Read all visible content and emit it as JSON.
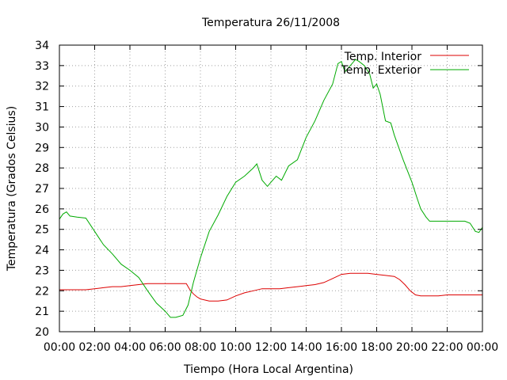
{
  "chart_data": {
    "type": "line",
    "title": "Temperatura 26/11/2008",
    "xlabel": "Tiempo (Hora Local Argentina)",
    "ylabel": "Temperatura (Grados Celsius)",
    "xlim": [
      0,
      24
    ],
    "ylim": [
      20,
      34
    ],
    "x_ticks": [
      "00:00",
      "02:00",
      "04:00",
      "06:00",
      "08:00",
      "10:00",
      "12:00",
      "14:00",
      "16:00",
      "18:00",
      "20:00",
      "22:00",
      "00:00"
    ],
    "y_ticks": [
      "20",
      "21",
      "22",
      "23",
      "24",
      "25",
      "26",
      "27",
      "28",
      "29",
      "30",
      "31",
      "32",
      "33",
      "34"
    ],
    "grid": true,
    "legend_position": "top-right",
    "colors": {
      "interior": "#dd0000",
      "exterior": "#00aa00",
      "grid": "#a0a0a0",
      "axis": "#000000"
    },
    "series": [
      {
        "name": "Temp. Interior",
        "x": [
          0,
          0.5,
          1,
          1.5,
          2,
          2.5,
          3,
          3.5,
          4,
          4.5,
          5,
          5.5,
          6,
          6.5,
          7,
          7.2,
          7.4,
          7.6,
          7.8,
          8,
          8.5,
          9,
          9.5,
          10,
          10.5,
          11,
          11.5,
          12,
          12.5,
          13,
          13.5,
          14,
          14.5,
          15,
          15.5,
          16,
          16.5,
          17,
          17.5,
          18,
          18.5,
          19,
          19.3,
          19.6,
          19.9,
          20.2,
          20.5,
          21,
          21.5,
          22,
          22.5,
          23,
          23.5,
          24
        ],
        "y": [
          22.05,
          22.05,
          22.05,
          22.05,
          22.1,
          22.15,
          22.2,
          22.2,
          22.25,
          22.3,
          22.35,
          22.35,
          22.35,
          22.35,
          22.35,
          22.35,
          22.05,
          21.85,
          21.7,
          21.6,
          21.5,
          21.5,
          21.55,
          21.75,
          21.9,
          22.0,
          22.1,
          22.1,
          22.1,
          22.15,
          22.2,
          22.25,
          22.3,
          22.4,
          22.6,
          22.8,
          22.85,
          22.85,
          22.85,
          22.8,
          22.75,
          22.7,
          22.55,
          22.3,
          22.0,
          21.8,
          21.75,
          21.75,
          21.75,
          21.8,
          21.8,
          21.8,
          21.8,
          21.8
        ]
      },
      {
        "name": "Temp. Exterior",
        "x": [
          0,
          0.2,
          0.4,
          0.6,
          1,
          1.5,
          2,
          2.5,
          3,
          3.5,
          4,
          4.5,
          5,
          5.5,
          6,
          6.3,
          6.6,
          7,
          7.3,
          7.6,
          8,
          8.5,
          9,
          9.5,
          10,
          10.5,
          11,
          11.2,
          11.5,
          11.8,
          12,
          12.3,
          12.6,
          13,
          13.5,
          14,
          14.5,
          15,
          15.5,
          15.8,
          16,
          16.2,
          16.5,
          16.8,
          17,
          17.3,
          17.6,
          17.8,
          18,
          18.2,
          18.5,
          18.8,
          19,
          19.5,
          20,
          20.3,
          20.5,
          20.8,
          21,
          22,
          22.5,
          23,
          23.3,
          23.6,
          23.8,
          24
        ],
        "y": [
          25.5,
          25.75,
          25.85,
          25.65,
          25.6,
          25.55,
          24.9,
          24.25,
          23.8,
          23.3,
          23.0,
          22.65,
          22.0,
          21.4,
          21.0,
          20.7,
          20.7,
          20.8,
          21.3,
          22.4,
          23.6,
          24.9,
          25.7,
          26.6,
          27.3,
          27.6,
          28.0,
          28.2,
          27.4,
          27.1,
          27.3,
          27.6,
          27.4,
          28.1,
          28.4,
          29.5,
          30.3,
          31.3,
          32.1,
          33.1,
          33.2,
          32.7,
          33.0,
          33.3,
          33.2,
          33.0,
          32.6,
          31.9,
          32.1,
          31.6,
          30.3,
          30.2,
          29.6,
          28.4,
          27.3,
          26.5,
          26.0,
          25.6,
          25.4,
          25.4,
          25.4,
          25.4,
          25.3,
          24.9,
          24.85,
          25.1
        ]
      }
    ]
  }
}
